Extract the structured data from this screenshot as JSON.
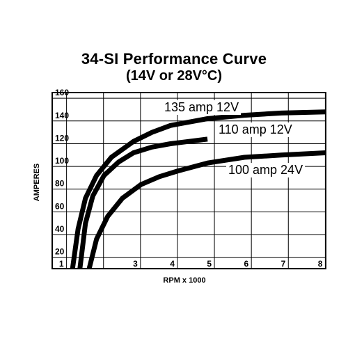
{
  "chart_data": {
    "type": "line",
    "title": "34-SI Performance Curve",
    "subtitle": "(14V or 28V°C)",
    "xlabel": "RPM x 1000",
    "ylabel": "AMPERES",
    "xlim": [
      0.8,
      8.2
    ],
    "ylim": [
      10,
      165
    ],
    "x_ticks": [
      1,
      2,
      3,
      4,
      5,
      6,
      7,
      8
    ],
    "x_tick_labels": [
      "1",
      "",
      "3",
      "4",
      "5",
      "6",
      "7",
      "8"
    ],
    "y_ticks": [
      20,
      40,
      60,
      80,
      100,
      120,
      140,
      160
    ],
    "y_tick_labels": [
      "20",
      "40",
      "60",
      "80",
      "100",
      "120",
      "140",
      "160"
    ],
    "grid": true,
    "series": [
      {
        "name": "135 amp 12V",
        "x": [
          1.35,
          1.5,
          1.7,
          2.0,
          2.4,
          3.0,
          3.5,
          4.0,
          5.0,
          6.0,
          7.0,
          8.2
        ],
        "y": [
          10,
          45,
          72,
          92,
          108,
          122,
          130,
          136,
          142,
          145,
          147,
          148
        ]
      },
      {
        "name": "110 amp 12V",
        "x": [
          1.55,
          1.7,
          1.9,
          2.2,
          2.6,
          3.0,
          3.5,
          4.0,
          4.5,
          5.0
        ],
        "y": [
          10,
          50,
          74,
          92,
          104,
          112,
          117,
          120,
          122,
          124
        ]
      },
      {
        "name": "100 amp 24V",
        "x": [
          1.8,
          2.0,
          2.3,
          2.7,
          3.2,
          3.7,
          4.2,
          5.0,
          6.0,
          7.0,
          8.2
        ],
        "y": [
          10,
          36,
          56,
          72,
          84,
          91,
          96,
          103,
          108,
          110,
          112
        ]
      }
    ],
    "annotations": [
      {
        "text": "135 amp 12V",
        "series": 0
      },
      {
        "text": "110 amp 12V",
        "series": 1
      },
      {
        "text": "100 amp 24V",
        "series": 2
      }
    ],
    "line_color": "#000000",
    "grid_color": "#000000"
  }
}
